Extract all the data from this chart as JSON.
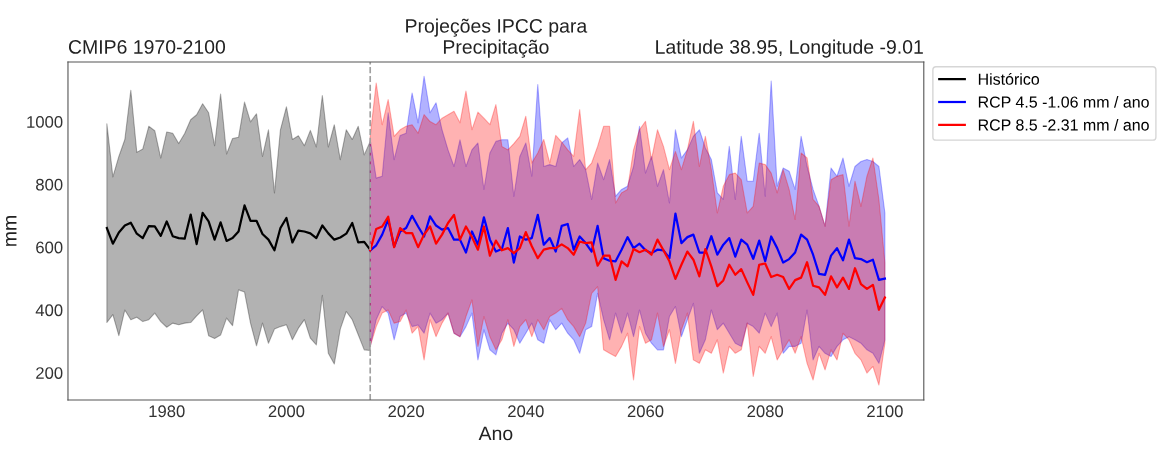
{
  "chart_data": {
    "type": "line",
    "title": "Projeções IPCC para\nPrecipitação",
    "subtitle": "CMIP6 1970-2100",
    "annotations": [
      "Latitude 38.95, Longitude -9.01"
    ],
    "xlabel": "Ano",
    "ylabel": "mm",
    "xlim": [
      1963.5,
      2106.5
    ],
    "ylim": [
      113,
      1190
    ],
    "xticks": [
      1980,
      2000,
      2020,
      2040,
      2060,
      2080,
      2100
    ],
    "yticks": [
      200,
      400,
      600,
      800,
      1000
    ],
    "grid": false,
    "legend": "top right",
    "ref_lines": [
      {
        "axis": "x",
        "value": 2014,
        "label": null,
        "color": "#a0a0a0",
        "line_style": "dashed"
      }
    ],
    "series": [
      {
        "name": "Histórico",
        "color": "#000000",
        "x": [
          1970,
          1971,
          1972,
          1973,
          1974,
          1975,
          1976,
          1977,
          1978,
          1979,
          1980,
          1981,
          1982,
          1983,
          1984,
          1985,
          1986,
          1987,
          1988,
          1989,
          1990,
          1991,
          1992,
          1993,
          1994,
          1995,
          1996,
          1997,
          1998,
          1999,
          2000,
          2001,
          2002,
          2003,
          2004,
          2005,
          2006,
          2007,
          2008,
          2009,
          2010,
          2011,
          2012,
          2013,
          2014
        ],
        "values": [
          661,
          611,
          647,
          669,
          678,
          643,
          629,
          667,
          666,
          636,
          682,
          635,
          629,
          627,
          704,
          610,
          709,
          682,
          624,
          679,
          620,
          629,
          650,
          733,
          684,
          684,
          642,
          624,
          590,
          661,
          693,
          615,
          653,
          650,
          644,
          629,
          669,
          644,
          624,
          631,
          643,
          677,
          615,
          617,
          592
        ],
        "upper": [
          993,
          824,
          889,
          943,
          1100,
          902,
          913,
          985,
          971,
          884,
          967,
          963,
          930,
          962,
          1006,
          1022,
          1057,
          1028,
          923,
          1088,
          897,
          946,
          950,
          1062,
          999,
          1025,
          889,
          974,
          773,
          974,
          1047,
          943,
          955,
          923,
          972,
          919,
          1083,
          919,
          990,
          879,
          974,
          943,
          985,
          894,
          937
        ],
        "lower": [
          360,
          385,
          318,
          400,
          369,
          377,
          363,
          369,
          390,
          363,
          345,
          358,
          353,
          358,
          360,
          381,
          400,
          318,
          309,
          320,
          374,
          350,
          464,
          457,
          358,
          286,
          358,
          294,
          339,
          347,
          353,
          305,
          342,
          369,
          310,
          289,
          447,
          262,
          228,
          339,
          395,
          369,
          321,
          273,
          271
        ]
      },
      {
        "name": "RCP 4.5 -1.06 mm / ano",
        "color": "#0000ff",
        "x": [
          2014,
          2015,
          2016,
          2017,
          2018,
          2019,
          2020,
          2021,
          2022,
          2023,
          2024,
          2025,
          2026,
          2027,
          2028,
          2029,
          2030,
          2031,
          2032,
          2033,
          2034,
          2035,
          2036,
          2037,
          2038,
          2039,
          2040,
          2041,
          2042,
          2043,
          2044,
          2045,
          2046,
          2047,
          2048,
          2049,
          2050,
          2051,
          2052,
          2053,
          2054,
          2055,
          2056,
          2057,
          2058,
          2059,
          2060,
          2061,
          2062,
          2063,
          2064,
          2065,
          2066,
          2067,
          2068,
          2069,
          2070,
          2071,
          2072,
          2073,
          2074,
          2075,
          2076,
          2077,
          2078,
          2079,
          2080,
          2081,
          2082,
          2083,
          2084,
          2085,
          2086,
          2087,
          2088,
          2089,
          2090,
          2091,
          2092,
          2093,
          2094,
          2095,
          2096,
          2097,
          2098,
          2099,
          2100
        ],
        "values": [
          590,
          606,
          640,
          688,
          602,
          650,
          661,
          700,
          666,
          634,
          698,
          669,
          656,
          661,
          624,
          624,
          583,
          650,
          608,
          695,
          624,
          586,
          594,
          661,
          551,
          634,
          624,
          629,
          703,
          608,
          629,
          586,
          668,
          674,
          592,
          634,
          613,
          586,
          668,
          565,
          557,
          555,
          592,
          632,
          597,
          611,
          590,
          581,
          592,
          590,
          565,
          707,
          613,
          632,
          640,
          583,
          583,
          635,
          576,
          608,
          629,
          570,
          624,
          608,
          563,
          621,
          555,
          634,
          597,
          551,
          562,
          583,
          640,
          624,
          576,
          515,
          512,
          573,
          597,
          558,
          624,
          565,
          562,
          552,
          560,
          496,
          500
        ],
        "upper": [
          942,
          820,
          826,
          1028,
          879,
          956,
          963,
          1091,
          996,
          1144,
          1028,
          1060,
          974,
          910,
          857,
          942,
          857,
          910,
          932,
          784,
          900,
          937,
          942,
          942,
          762,
          889,
          932,
          826,
          1118,
          857,
          863,
          857,
          932,
          948,
          857,
          879,
          847,
          752,
          868,
          815,
          879,
          762,
          784,
          794,
          857,
          985,
          836,
          889,
          794,
          847,
          741,
          974,
          884,
          910,
          953,
          974,
          916,
          879,
          773,
          752,
          921,
          752,
          953,
          810,
          810,
          963,
          762,
          1129,
          794,
          852,
          842,
          784,
          953,
          857,
          784,
          730,
          667,
          852,
          826,
          884,
          794,
          857,
          873,
          879,
          873,
          857,
          709
        ],
        "lower": [
          284,
          369,
          411,
          390,
          305,
          379,
          390,
          347,
          352,
          326,
          390,
          358,
          369,
          390,
          326,
          315,
          347,
          390,
          241,
          337,
          273,
          257,
          326,
          358,
          337,
          294,
          326,
          358,
          305,
          294,
          369,
          337,
          358,
          326,
          305,
          262,
          337,
          347,
          453,
          369,
          305,
          390,
          326,
          390,
          315,
          400,
          326,
          294,
          273,
          273,
          379,
          411,
          315,
          369,
          421,
          262,
          305,
          400,
          337,
          358,
          326,
          294,
          284,
          358,
          347,
          326,
          390,
          347,
          390,
          262,
          284,
          284,
          294,
          400,
          241,
          284,
          262,
          252,
          284,
          305,
          315,
          305,
          294,
          273,
          262,
          230,
          305
        ]
      },
      {
        "name": "RCP 8.5 -2.31 mm / ano",
        "color": "#ff0000",
        "x": [
          2014,
          2015,
          2016,
          2017,
          2018,
          2019,
          2020,
          2021,
          2022,
          2023,
          2024,
          2025,
          2026,
          2027,
          2028,
          2029,
          2030,
          2031,
          2032,
          2033,
          2034,
          2035,
          2036,
          2037,
          2038,
          2039,
          2040,
          2041,
          2042,
          2043,
          2044,
          2045,
          2046,
          2047,
          2048,
          2049,
          2050,
          2051,
          2052,
          2053,
          2054,
          2055,
          2056,
          2057,
          2058,
          2059,
          2060,
          2061,
          2062,
          2063,
          2064,
          2065,
          2066,
          2067,
          2068,
          2069,
          2070,
          2071,
          2072,
          2073,
          2074,
          2075,
          2076,
          2077,
          2078,
          2079,
          2080,
          2081,
          2082,
          2083,
          2084,
          2085,
          2086,
          2087,
          2088,
          2089,
          2090,
          2091,
          2092,
          2093,
          2094,
          2095,
          2096,
          2097,
          2098,
          2099,
          2100
        ],
        "values": [
          590,
          658,
          666,
          697,
          600,
          661,
          645,
          645,
          600,
          640,
          666,
          611,
          640,
          677,
          703,
          624,
          666,
          632,
          592,
          666,
          573,
          621,
          590,
          597,
          581,
          597,
          648,
          603,
          565,
          592,
          597,
          597,
          609,
          597,
          576,
          618,
          613,
          615,
          541,
          573,
          573,
          496,
          555,
          539,
          594,
          584,
          592,
          576,
          624,
          590,
          555,
          499,
          544,
          586,
          560,
          507,
          594,
          539,
          476,
          494,
          544,
          512,
          530,
          488,
          448,
          544,
          548,
          505,
          512,
          505,
          467,
          495,
          503,
          552,
          477,
          472,
          448,
          507,
          472,
          503,
          467,
          533,
          482,
          467,
          480,
          401,
          440
        ],
        "upper": [
          953,
          1123,
          990,
          1070,
          953,
          974,
          985,
          990,
          963,
          1022,
          1000,
          990,
          1011,
          1022,
          1033,
          996,
          1097,
          974,
          1030,
          1011,
          990,
          1054,
          921,
          910,
          930,
          953,
          1017,
          868,
          900,
          943,
          868,
          956,
          935,
          910,
          889,
          1038,
          847,
          868,
          921,
          985,
          985,
          741,
          773,
          784,
          910,
          974,
          1001,
          879,
          974,
          921,
          847,
          905,
          847,
          910,
          1001,
          857,
          953,
          847,
          709,
          794,
          831,
          836,
          815,
          709,
          730,
          868,
          863,
          836,
          773,
          847,
          784,
          688,
          900,
          884,
          752,
          730,
          667,
          815,
          826,
          831,
          667,
          810,
          730,
          826,
          884,
          752,
          550
        ],
        "lower": [
          284,
          347,
          390,
          400,
          358,
          363,
          400,
          326,
          347,
          241,
          369,
          315,
          358,
          390,
          326,
          315,
          379,
          432,
          284,
          379,
          315,
          273,
          305,
          369,
          284,
          347,
          369,
          315,
          369,
          337,
          379,
          390,
          405,
          369,
          347,
          315,
          358,
          453,
          474,
          273,
          262,
          252,
          284,
          326,
          177,
          347,
          294,
          305,
          390,
          284,
          337,
          230,
          337,
          390,
          241,
          230,
          273,
          262,
          305,
          199,
          284,
          262,
          273,
          358,
          188,
          284,
          262,
          315,
          241,
          273,
          305,
          262,
          315,
          230,
          177,
          262,
          209,
          273,
          241,
          326,
          305,
          262,
          241,
          199,
          220,
          161,
          294
        ]
      }
    ]
  }
}
